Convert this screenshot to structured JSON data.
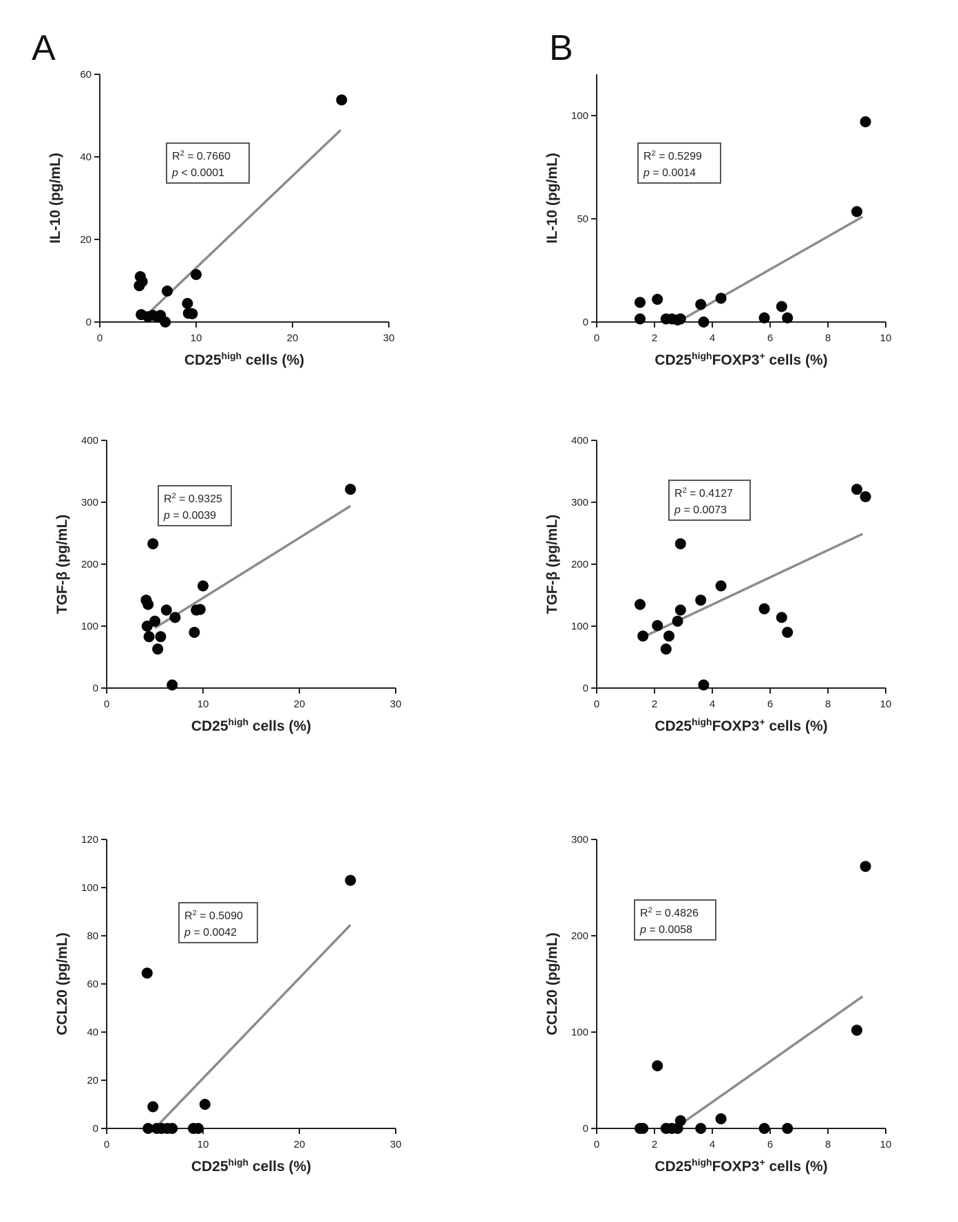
{
  "panel_labels": {
    "A": "A",
    "B": "B"
  },
  "chart_data": [
    {
      "id": "A1",
      "type": "scatter",
      "xlabel_main": "CD25",
      "xlabel_sup": "high",
      "xlabel_rest": " cells (%)",
      "ylabel": "IL-10 (pg/mL)",
      "xlim": [
        0,
        30
      ],
      "ylim": [
        0,
        60
      ],
      "xticks": [
        0,
        10,
        20,
        30
      ],
      "yticks": [
        0,
        20,
        40,
        60
      ],
      "r2": "0.7660",
      "p_op": " < ",
      "p_val": "0.0001",
      "fit": [
        [
          5,
          2
        ],
        [
          25,
          46.5
        ]
      ],
      "points": [
        [
          4.2,
          11
        ],
        [
          4.1,
          8.8
        ],
        [
          4.4,
          9.8
        ],
        [
          4.3,
          1.8
        ],
        [
          5,
          1.3
        ],
        [
          5.5,
          1.6
        ],
        [
          6,
          1.2
        ],
        [
          6.3,
          1.6
        ],
        [
          6.8,
          0
        ],
        [
          7,
          7.5
        ],
        [
          9.1,
          4.5
        ],
        [
          9.2,
          2.1
        ],
        [
          9.6,
          2
        ],
        [
          10,
          11.5
        ],
        [
          25.1,
          53.8
        ]
      ]
    },
    {
      "id": "B1",
      "type": "scatter",
      "xlabel_main": "CD25",
      "xlabel_sup": "high",
      "xlabel_rest": "FOXP3",
      "xlabel_sup2": "+",
      "xlabel_rest2": " cells (%)",
      "ylabel": "IL-10 (pg/mL)",
      "xlim": [
        0,
        10
      ],
      "ylim": [
        0,
        120
      ],
      "xticks": [
        0,
        2,
        4,
        6,
        8,
        10
      ],
      "yticks": [
        0,
        50,
        100
      ],
      "r2": "0.5299",
      "p_op": " = ",
      "p_val": "0.0014",
      "fit": [
        [
          2.8,
          0
        ],
        [
          9.2,
          51
        ]
      ],
      "points": [
        [
          1.5,
          9.5
        ],
        [
          1.5,
          1.5
        ],
        [
          2.1,
          11
        ],
        [
          2.4,
          1.5
        ],
        [
          2.6,
          1.5
        ],
        [
          2.8,
          1
        ],
        [
          2.9,
          1.5
        ],
        [
          3.6,
          8.5
        ],
        [
          3.7,
          0
        ],
        [
          4.3,
          11.5
        ],
        [
          5.8,
          2
        ],
        [
          6.4,
          7.5
        ],
        [
          6.6,
          2
        ],
        [
          9,
          53.5
        ],
        [
          9.3,
          97
        ]
      ]
    },
    {
      "id": "A2",
      "type": "scatter",
      "xlabel_main": "CD25",
      "xlabel_sup": "high",
      "xlabel_rest": " cells (%)",
      "ylabel": "TGF-β (pg/mL)",
      "xlim": [
        0,
        30
      ],
      "ylim": [
        0,
        400
      ],
      "xticks": [
        0,
        10,
        20,
        30
      ],
      "yticks": [
        0,
        100,
        200,
        300,
        400
      ],
      "r2": "0.9325",
      "p_op": " = ",
      "p_val": "0.0039",
      "fit": [
        [
          5,
          97
        ],
        [
          25.3,
          294
        ]
      ],
      "points": [
        [
          4.1,
          142
        ],
        [
          4.3,
          135
        ],
        [
          4.2,
          100
        ],
        [
          4.4,
          83
        ],
        [
          4.8,
          233
        ],
        [
          5,
          108
        ],
        [
          5.3,
          63
        ],
        [
          5.6,
          83
        ],
        [
          6.2,
          126
        ],
        [
          6.8,
          5
        ],
        [
          7.1,
          114
        ],
        [
          9.1,
          90
        ],
        [
          9.3,
          126
        ],
        [
          9.7,
          127
        ],
        [
          10,
          165
        ],
        [
          25.3,
          321
        ]
      ]
    },
    {
      "id": "B2",
      "type": "scatter",
      "xlabel_main": "CD25",
      "xlabel_sup": "high",
      "xlabel_rest": "FOXP3",
      "xlabel_sup2": "+",
      "xlabel_rest2": " cells (%)",
      "ylabel": "TGF-β (pg/mL)",
      "xlim": [
        0,
        10
      ],
      "ylim": [
        0,
        400
      ],
      "xticks": [
        0,
        2,
        4,
        6,
        8,
        10
      ],
      "yticks": [
        0,
        100,
        200,
        300,
        400
      ],
      "r2": "0.4127",
      "p_op": " = ",
      "p_val": "0.0073",
      "fit": [
        [
          1.5,
          80
        ],
        [
          9.2,
          249
        ]
      ],
      "points": [
        [
          1.5,
          135
        ],
        [
          1.6,
          84
        ],
        [
          2.1,
          101
        ],
        [
          2.4,
          63
        ],
        [
          2.5,
          84
        ],
        [
          2.8,
          108
        ],
        [
          2.9,
          126
        ],
        [
          2.9,
          233
        ],
        [
          3.6,
          142
        ],
        [
          3.7,
          5
        ],
        [
          4.3,
          165
        ],
        [
          5.8,
          128
        ],
        [
          6.4,
          114
        ],
        [
          6.6,
          90
        ],
        [
          9,
          321
        ],
        [
          9.3,
          309
        ]
      ]
    },
    {
      "id": "A3",
      "type": "scatter",
      "xlabel_main": "CD25",
      "xlabel_sup": "high",
      "xlabel_rest": " cells (%)",
      "ylabel": "CCL20 (pg/mL)",
      "xlim": [
        0,
        30
      ],
      "ylim": [
        0,
        120
      ],
      "xticks": [
        0,
        10,
        20,
        30
      ],
      "yticks": [
        0,
        20,
        40,
        60,
        80,
        100,
        120
      ],
      "r2": "0.5090",
      "p_op": " = ",
      "p_val": "0.0042",
      "fit": [
        [
          5,
          0
        ],
        [
          25.3,
          84.5
        ]
      ],
      "points": [
        [
          4.2,
          64.5
        ],
        [
          4.3,
          0
        ],
        [
          4.8,
          9
        ],
        [
          5.2,
          0
        ],
        [
          5.7,
          0
        ],
        [
          6.3,
          0
        ],
        [
          6.8,
          0
        ],
        [
          9,
          0
        ],
        [
          9.5,
          0
        ],
        [
          10.2,
          10
        ],
        [
          25.3,
          103
        ]
      ]
    },
    {
      "id": "B3",
      "type": "scatter",
      "xlabel_main": "CD25",
      "xlabel_sup": "high",
      "xlabel_rest": "FOXP3",
      "xlabel_sup2": "+",
      "xlabel_rest2": " cells (%)",
      "ylabel": "CCL20 (pg/mL)",
      "xlim": [
        0,
        10
      ],
      "ylim": [
        0,
        300
      ],
      "xticks": [
        0,
        2,
        4,
        6,
        8,
        10
      ],
      "yticks": [
        0,
        100,
        200,
        300
      ],
      "r2": "0.4826",
      "p_op": " = ",
      "p_val": "0.0058",
      "fit": [
        [
          2.7,
          0
        ],
        [
          9.2,
          137
        ]
      ],
      "points": [
        [
          1.5,
          0
        ],
        [
          1.6,
          0
        ],
        [
          2.1,
          65
        ],
        [
          2.4,
          0
        ],
        [
          2.6,
          0
        ],
        [
          2.8,
          0
        ],
        [
          2.9,
          8
        ],
        [
          3.6,
          0
        ],
        [
          4.3,
          10
        ],
        [
          5.8,
          0
        ],
        [
          6.6,
          0
        ],
        [
          9,
          102
        ],
        [
          9.3,
          272
        ]
      ]
    }
  ]
}
